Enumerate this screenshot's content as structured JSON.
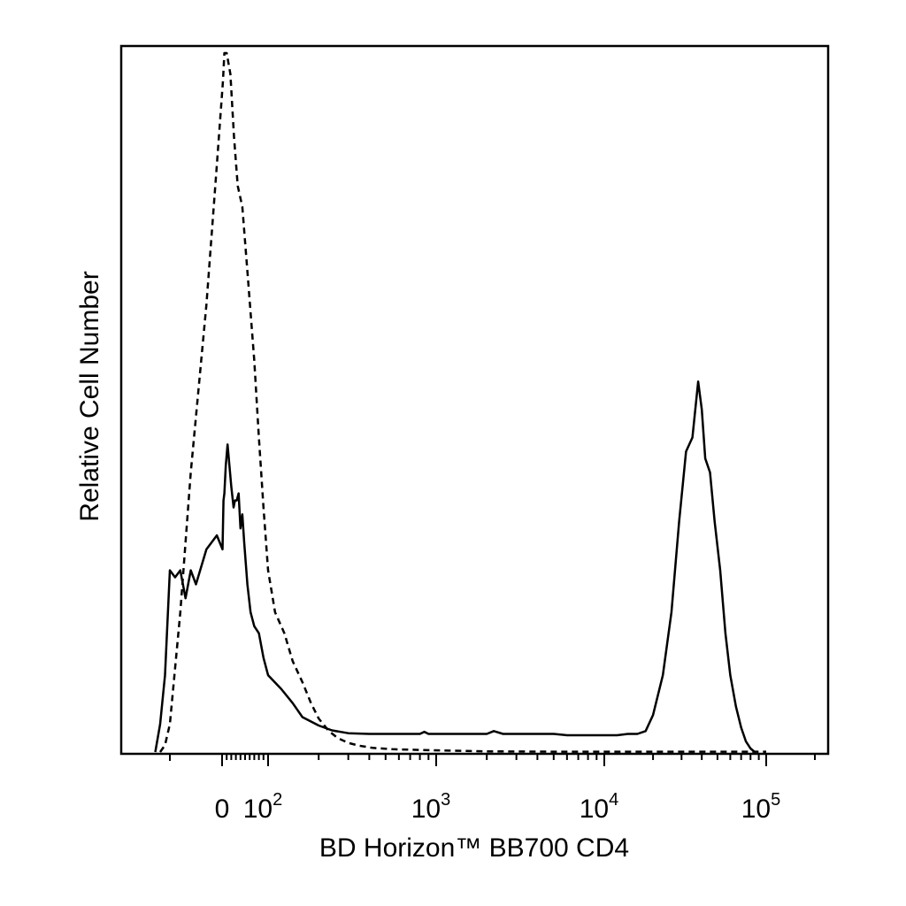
{
  "chart_data": {
    "type": "line",
    "title": "",
    "xlabel": "BD Horizon™ BB700 CD4",
    "ylabel": "Relative Cell Number",
    "x_scale": "biexponential",
    "xlim": [
      -20,
      200000
    ],
    "ylim": [
      0,
      100
    ],
    "grid": false,
    "legend": "none",
    "x_ticks": [
      {
        "value": 0,
        "label": "0",
        "sup": ""
      },
      {
        "value": 100,
        "label": "10",
        "sup": "2"
      },
      {
        "value": 1000,
        "label": "10",
        "sup": "3"
      },
      {
        "value": 10000,
        "label": "10",
        "sup": "4"
      },
      {
        "value": 100000,
        "label": "10",
        "sup": "5"
      }
    ],
    "series": [
      {
        "style": "dashed",
        "x": [
          -12,
          -11,
          -10,
          -8,
          -6,
          -3,
          -1,
          2,
          5,
          10,
          18,
          26,
          34,
          44,
          56,
          70,
          80,
          90,
          100,
          110,
          125,
          140,
          160,
          180,
          200,
          230,
          260,
          300,
          350,
          420,
          550,
          800,
          1200,
          2000,
          5000,
          20000,
          50000,
          100000
        ],
        "y": [
          0,
          1,
          4,
          20,
          40,
          64,
          84,
          96,
          100,
          100,
          97,
          88,
          81,
          78,
          68,
          56,
          45,
          35,
          26,
          20,
          17,
          13,
          10,
          7,
          4.8,
          3,
          2,
          1.3,
          0.9,
          0.6,
          0.4,
          0.3,
          0.2,
          0.1,
          0.05,
          0.05,
          0.05,
          0.05
        ]
      },
      {
        "style": "solid",
        "x": [
          -13,
          -12,
          -11,
          -10,
          -9,
          -8,
          -7,
          -6,
          -5,
          -3,
          -1,
          1,
          3,
          5,
          8,
          12,
          16,
          20,
          25,
          28,
          32,
          36,
          40,
          44,
          48,
          55,
          62,
          70,
          80,
          90,
          100,
          120,
          140,
          160,
          200,
          240,
          300,
          400,
          600,
          800,
          850,
          900,
          1000,
          1500,
          2000,
          2200,
          2500,
          3000,
          4000,
          5000,
          6000,
          8000,
          10000,
          12000,
          14000,
          16000,
          18000,
          20000,
          23000,
          26000,
          29000,
          32000,
          35000,
          38000,
          40000,
          42000,
          45000,
          48000,
          52000,
          56000,
          60000,
          65000,
          70000,
          75000,
          80000,
          85000
        ],
        "y": [
          0,
          4,
          11,
          26,
          25,
          26,
          22,
          26,
          24,
          29,
          31,
          29,
          36,
          37,
          41,
          44,
          41,
          38,
          35,
          36,
          36,
          37,
          32,
          34,
          30,
          24,
          20,
          18,
          17,
          13.5,
          11,
          9,
          7,
          5,
          3.8,
          3.1,
          2.7,
          2.6,
          2.6,
          2.6,
          2.9,
          2.6,
          2.6,
          2.6,
          2.6,
          3.0,
          2.6,
          2.6,
          2.6,
          2.6,
          2.4,
          2.4,
          2.4,
          2.4,
          2.6,
          2.6,
          3.0,
          5.3,
          11,
          20,
          33,
          43,
          45,
          53,
          49,
          42,
          40,
          33,
          26,
          17,
          11,
          6.5,
          3.5,
          1.5,
          0.5,
          0
        ]
      }
    ]
  }
}
